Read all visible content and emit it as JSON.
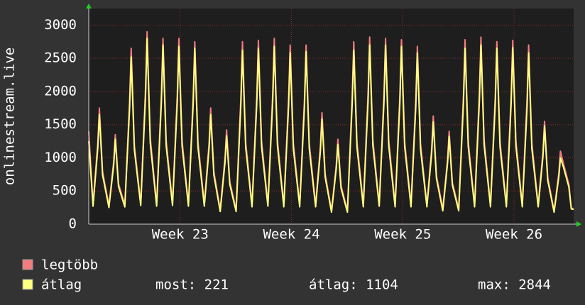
{
  "chart_data": {
    "type": "line",
    "ylabel": "onlinestream.live",
    "x": [
      0,
      0.27,
      0.57,
      0.67,
      0.87,
      1.27,
      1.57,
      1.67,
      1.87,
      2.27,
      2.57,
      2.67,
      2.87,
      3.27,
      3.57,
      3.67,
      3.87,
      4.27,
      4.57,
      4.67,
      4.87,
      5.27,
      5.57,
      5.67,
      5.87,
      6.27,
      6.57,
      6.67,
      6.87,
      7.27,
      7.57,
      7.67,
      7.87,
      8.27,
      8.57,
      8.67,
      8.87,
      9.27,
      9.57,
      9.67,
      9.87,
      10.27,
      10.57,
      10.67,
      10.87,
      11.27,
      11.57,
      11.67,
      11.87,
      12.27,
      12.57,
      12.67,
      12.87,
      13.27,
      13.57,
      13.67,
      13.87,
      14.27,
      14.57,
      14.67,
      14.87,
      15.27,
      15.57,
      15.67,
      15.87,
      16.27,
      16.57,
      16.67,
      16.87,
      17.27,
      17.57,
      17.67,
      17.87,
      18.27,
      18.57,
      18.67,
      18.87,
      19.27,
      19.57,
      19.67,
      19.87,
      20.27,
      20.57,
      20.67,
      20.87,
      21.27,
      21.57,
      21.67,
      21.87,
      22.27,
      22.57,
      22.67,
      22.87,
      23.27,
      23.57,
      23.67,
      23.87,
      24.27,
      24.57,
      24.67,
      24.87,
      25.27,
      25.57,
      25.67,
      25.87,
      26.27,
      26.57,
      26.67,
      26.87,
      27.27,
      27.57,
      27.67,
      27.87,
      28.27,
      28.57,
      28.67,
      28.87,
      29.27,
      29.57,
      29.67,
      29.87,
      30.2,
      30.35,
      30.5
    ],
    "series": [
      {
        "name": "legtöbb",
        "color": "#f47c7c",
        "values": [
          1400,
          300,
          1225,
          1750,
          790,
          280,
          945,
          1350,
          610,
          290,
          1855,
          2650,
          1190,
          310,
          2030,
          2900,
          1300,
          300,
          1960,
          2800,
          1260,
          310,
          1960,
          2800,
          1260,
          300,
          1925,
          2750,
          1240,
          300,
          1225,
          1750,
          790,
          220,
          995,
          1420,
          640,
          220,
          1925,
          2750,
          1240,
          290,
          1940,
          2770,
          1250,
          300,
          1960,
          2800,
          1260,
          290,
          1890,
          2700,
          1220,
          290,
          1890,
          2700,
          1220,
          290,
          1175,
          1680,
          760,
          200,
          895,
          1280,
          580,
          200,
          1925,
          2750,
          1240,
          290,
          1975,
          2820,
          1270,
          300,
          1960,
          2800,
          1260,
          290,
          1945,
          2780,
          1250,
          290,
          1875,
          2680,
          1210,
          290,
          1140,
          1630,
          730,
          230,
          980,
          1400,
          630,
          230,
          1945,
          2780,
          1250,
          290,
          1975,
          2820,
          1270,
          290,
          1925,
          2750,
          1240,
          290,
          1940,
          2770,
          1250,
          290,
          1890,
          2700,
          1220,
          290,
          1085,
          1550,
          700,
          200,
          770,
          1100,
          900,
          600,
          250,
          221
        ]
      },
      {
        "name": "átlag",
        "color": "#ffff80",
        "values": [
          1250,
          270,
          1150,
          1650,
          740,
          250,
          890,
          1280,
          570,
          260,
          1750,
          2520,
          1120,
          280,
          1910,
          2800,
          1220,
          270,
          1840,
          2700,
          1180,
          280,
          1840,
          2680,
          1180,
          270,
          1810,
          2650,
          1160,
          270,
          1150,
          1650,
          740,
          190,
          930,
          1330,
          600,
          190,
          1810,
          2620,
          1160,
          260,
          1820,
          2650,
          1170,
          270,
          1840,
          2680,
          1180,
          260,
          1780,
          2580,
          1140,
          260,
          1780,
          2600,
          1140,
          260,
          1100,
          1580,
          710,
          180,
          840,
          1200,
          540,
          180,
          1810,
          2620,
          1160,
          260,
          1850,
          2700,
          1190,
          270,
          1840,
          2700,
          1180,
          260,
          1830,
          2680,
          1170,
          260,
          1760,
          2580,
          1130,
          260,
          1070,
          1540,
          690,
          200,
          920,
          1320,
          590,
          200,
          1830,
          2650,
          1170,
          260,
          1850,
          2700,
          1190,
          260,
          1810,
          2650,
          1160,
          260,
          1820,
          2660,
          1170,
          260,
          1760,
          2580,
          1140,
          260,
          1020,
          1480,
          660,
          180,
          720,
          1000,
          850,
          560,
          230,
          221
        ]
      }
    ],
    "stats": [
      "most: 221",
      "átlag: 1104",
      "max: 2844"
    ],
    "xlim": [
      0,
      30.5
    ],
    "xticks": [
      {
        "value": 5.75,
        "label": "Week 23"
      },
      {
        "value": 12.75,
        "label": "Week 24"
      },
      {
        "value": 19.75,
        "label": "Week 25"
      },
      {
        "value": 26.75,
        "label": "Week 26"
      }
    ],
    "ylim": [
      0,
      3250
    ],
    "yticks": [
      0,
      500,
      1000,
      1500,
      2000,
      2500,
      3000
    ],
    "grid": true
  }
}
